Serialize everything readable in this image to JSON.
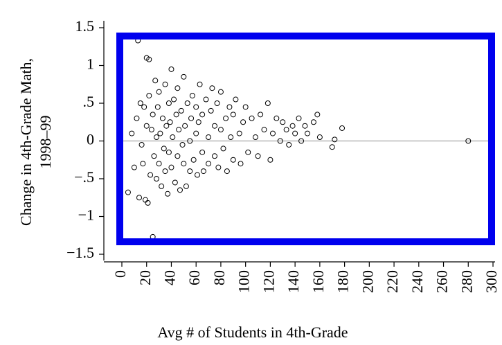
{
  "chart_data": {
    "type": "scatter",
    "ylabel_lines": [
      "Change in 4th-Grade Math,",
      "1998–99"
    ],
    "xlabel": "Avg # of Students in 4th-Grade",
    "xlim": [
      0,
      300
    ],
    "ylim": [
      -1.5,
      1.5
    ],
    "xticks": [
      0,
      20,
      40,
      60,
      80,
      100,
      120,
      140,
      160,
      180,
      200,
      220,
      240,
      260,
      280,
      300
    ],
    "yticks": [
      1.5,
      1,
      {
        "value": 0.5,
        "label": ".5"
      },
      0,
      {
        "value": -0.5,
        "label": "−.5"
      },
      {
        "value": -1,
        "label": "−1"
      },
      {
        "value": -1.5,
        "label": "−1.5"
      }
    ],
    "reference_line": 0,
    "color": "#000000",
    "x": [
      5,
      8,
      10,
      12,
      13,
      14,
      15,
      16,
      17,
      18,
      19,
      20,
      20,
      21,
      22,
      22,
      23,
      24,
      25,
      25,
      26,
      27,
      28,
      28,
      29,
      30,
      30,
      31,
      32,
      33,
      34,
      35,
      35,
      36,
      37,
      38,
      38,
      39,
      40,
      40,
      41,
      42,
      43,
      44,
      45,
      45,
      46,
      47,
      48,
      49,
      50,
      50,
      51,
      52,
      53,
      55,
      55,
      56,
      57,
      58,
      60,
      60,
      61,
      62,
      63,
      65,
      65,
      66,
      68,
      70,
      70,
      72,
      73,
      75,
      75,
      77,
      78,
      80,
      80,
      82,
      84,
      85,
      87,
      88,
      90,
      90,
      92,
      95,
      96,
      98,
      100,
      102,
      105,
      108,
      110,
      112,
      115,
      118,
      120,
      122,
      125,
      128,
      130,
      133,
      135,
      138,
      140,
      143,
      145,
      148,
      150,
      155,
      158,
      160,
      170,
      172,
      178,
      280
    ],
    "values": [
      -0.68,
      0.1,
      -0.35,
      0.3,
      1.33,
      -0.75,
      0.5,
      -0.05,
      -0.3,
      0.45,
      -0.78,
      1.1,
      0.2,
      -0.82,
      1.08,
      0.6,
      -0.45,
      0.15,
      -1.27,
      0.35,
      -0.2,
      0.8,
      -0.5,
      0.05,
      0.45,
      -0.3,
      0.65,
      0.1,
      -0.6,
      0.3,
      -0.1,
      0.75,
      -0.4,
      0.2,
      -0.7,
      0.5,
      -0.15,
      0.25,
      0.95,
      -0.35,
      0.05,
      0.55,
      -0.55,
      0.35,
      -0.2,
      0.7,
      0.15,
      -0.65,
      0.4,
      -0.05,
      0.85,
      -0.3,
      0.2,
      -0.6,
      0.5,
      0,
      -0.4,
      0.3,
      0.6,
      -0.25,
      0.1,
      0.45,
      -0.45,
      0.25,
      0.75,
      -0.15,
      0.35,
      -0.4,
      0.55,
      0.05,
      -0.3,
      0.4,
      0.7,
      -0.2,
      0.2,
      0.5,
      -0.35,
      0.15,
      0.65,
      -0.1,
      0.3,
      -0.4,
      0.45,
      0.05,
      -0.25,
      0.35,
      0.55,
      0.1,
      -0.3,
      0.25,
      0.45,
      -0.15,
      0.3,
      0.05,
      -0.2,
      0.35,
      0.15,
      0.5,
      -0.25,
      0.1,
      0.3,
      0,
      0.25,
      0.15,
      -0.05,
      0.2,
      0.1,
      0.3,
      0,
      0.2,
      0.1,
      0.25,
      0.35,
      0.05,
      -0.08,
      0.02,
      0.17,
      0
    ]
  }
}
